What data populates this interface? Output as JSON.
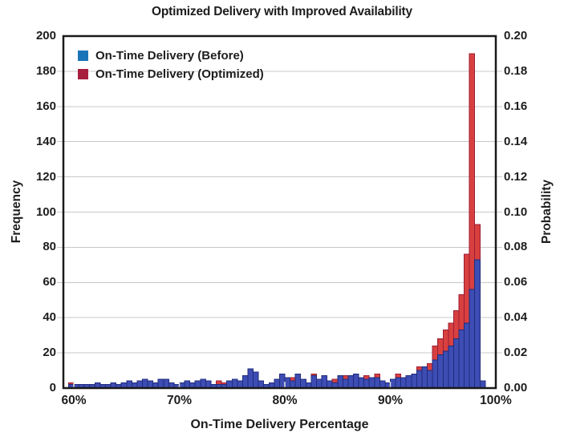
{
  "title": "Optimized Delivery with Improved Availability",
  "legend": {
    "items": [
      {
        "label": "On-Time Delivery (Before)",
        "color": "#1b74b8"
      },
      {
        "label": "On-Time Delivery (Optimized)",
        "color": "#a81e3e"
      }
    ]
  },
  "axes": {
    "x": {
      "label": "On-Time Delivery Percentage",
      "tick_labels": [
        "60%",
        "70%",
        "80%",
        "90%",
        "100%"
      ],
      "tick_values": [
        60,
        70,
        80,
        90,
        100
      ]
    },
    "y_left": {
      "label": "Frequency",
      "tick_labels": [
        "0",
        "20",
        "40",
        "60",
        "80",
        "100",
        "120",
        "140",
        "160",
        "180",
        "200"
      ],
      "tick_values": [
        0,
        20,
        40,
        60,
        80,
        100,
        120,
        140,
        160,
        180,
        200
      ]
    },
    "y_right": {
      "label": "Probability",
      "tick_labels": [
        "0.00",
        "0.02",
        "0.04",
        "0.06",
        "0.08",
        "0.10",
        "0.12",
        "0.14",
        "0.16",
        "0.18",
        "0.20"
      ]
    }
  },
  "chart_data": {
    "type": "bar",
    "subtype": "overlaid-histogram",
    "title": "Optimized Delivery with Improved Availability",
    "xlabel": "On-Time Delivery Percentage",
    "ylabel_left": "Frequency",
    "ylabel_right": "Probability",
    "xlim": [
      59,
      100
    ],
    "ylim_left": [
      0,
      200
    ],
    "ylim_right": [
      0.0,
      0.2
    ],
    "grid": "horizontal",
    "legend_position": "upper-left-inside",
    "bin_start_percent": 59.5,
    "bin_width_percent": 0.5,
    "series": [
      {
        "name": "On-Time Delivery (Before)",
        "fill": "#3d4db4",
        "edge": "#202b7c",
        "values": [
          2,
          2,
          2,
          2,
          2,
          3,
          2,
          2,
          3,
          2,
          3,
          4,
          3,
          4,
          5,
          4,
          3,
          5,
          5,
          3,
          2,
          3,
          4,
          3,
          4,
          5,
          4,
          2,
          2,
          2,
          4,
          5,
          4,
          7,
          11,
          9,
          4,
          2,
          3,
          5,
          8,
          6,
          4,
          8,
          5,
          3,
          7,
          5,
          7,
          4,
          3,
          7,
          5,
          7,
          8,
          6,
          5,
          6,
          6,
          4,
          3,
          5,
          6,
          6,
          7,
          8,
          10,
          12,
          10,
          16,
          19,
          21,
          24,
          28,
          33,
          37,
          56,
          73,
          4
        ]
      },
      {
        "name": "On-Time Delivery (Optimized)",
        "fill": "#d8403f",
        "edge": "#9c1d35",
        "values": [
          3,
          1,
          2,
          1,
          2,
          2,
          1,
          2,
          2,
          1,
          2,
          3,
          2,
          3,
          4,
          3,
          2,
          4,
          3,
          2,
          1,
          2,
          3,
          2,
          3,
          4,
          3,
          2,
          4,
          3,
          3,
          4,
          3,
          5,
          8,
          7,
          3,
          2,
          2,
          4,
          6,
          5,
          6,
          6,
          4,
          2,
          8,
          4,
          6,
          3,
          5,
          6,
          7,
          6,
          7,
          5,
          7,
          5,
          8,
          3,
          2,
          4,
          8,
          5,
          6,
          7,
          12,
          11,
          14,
          24,
          28,
          33,
          37,
          44,
          53,
          76,
          190,
          93,
          2
        ]
      }
    ]
  },
  "colors": {
    "grid": "#c8c8c8",
    "border": "#1a1a1a",
    "inner_tick": "#dcdcdc",
    "text": "#1d1d1f",
    "background": "#ffffff"
  }
}
